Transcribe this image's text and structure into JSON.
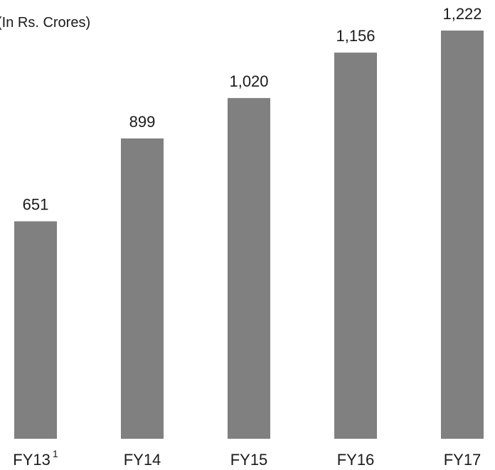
{
  "chart_data": {
    "type": "bar",
    "title": "",
    "unit_label": "(In Rs. Crores)",
    "categories": [
      "FY13",
      "FY14",
      "FY15",
      "FY16",
      "FY17"
    ],
    "category_superscripts": [
      "1",
      "",
      "",
      "",
      ""
    ],
    "values": [
      651,
      899,
      1020,
      1156,
      1222
    ],
    "value_labels": [
      "651",
      "899",
      "1,020",
      "1,156",
      "1,222"
    ],
    "ylim": [
      0,
      1300
    ],
    "grid": false,
    "legend": "none",
    "bar_color": "#808080",
    "text_color": "#1a1a1a"
  }
}
